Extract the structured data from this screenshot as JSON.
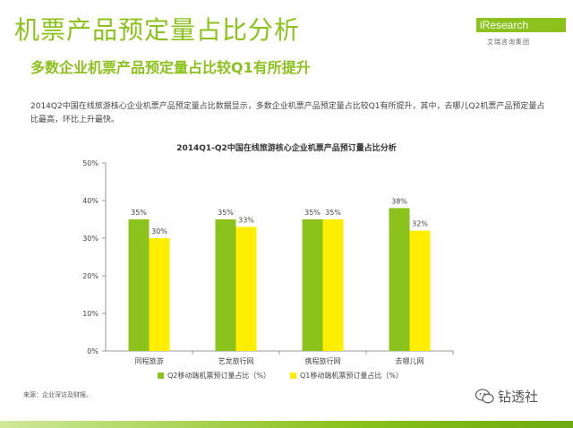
{
  "header": {
    "title": "机票产品预定量占比分析",
    "subtitle": "多数企业机票产品预定量占比较Q1有所提升",
    "description": "2014Q2中国在线旅游核心企业机票产品预定量占比数据显示，多数企业机票产品预定量占比较Q1有所提升，其中，去哪儿Q2机票产品预定量占比最高，环比上升最快。"
  },
  "logo": {
    "brand": "iResearch",
    "brand_cn": "艾瑞咨询集团",
    "brand_color": "#8bc21c"
  },
  "source": "来源：企业深访及财报。",
  "watermark": {
    "icon": "wechat-icon",
    "text": "钻透社"
  },
  "colors": {
    "q2": "#8bc21c",
    "q1": "#ffee00",
    "accent": "#8bc21c"
  },
  "chart_data": {
    "type": "bar",
    "title": "2014Q1-Q2中国在线旅游核心企业机票产品预订量占比分析",
    "categories": [
      "同程旅游",
      "艺龙旅行网",
      "携程旅行网",
      "去哪儿网"
    ],
    "series": [
      {
        "name": "Q2移动端机票预订量占比（%）",
        "values": [
          35,
          35,
          35,
          38
        ],
        "labels": [
          "35%",
          "35%",
          "35%",
          "38%"
        ]
      },
      {
        "name": "Q1移动端机票预订量占比（%）",
        "values": [
          30,
          33,
          35,
          32
        ],
        "labels": [
          "30%",
          "33%",
          "35%",
          "32%"
        ]
      }
    ],
    "y_ticks": [
      "0%",
      "10%",
      "20%",
      "30%",
      "40%",
      "50%"
    ],
    "ylim": [
      0,
      50
    ],
    "legend": "bottom",
    "grid": false
  }
}
